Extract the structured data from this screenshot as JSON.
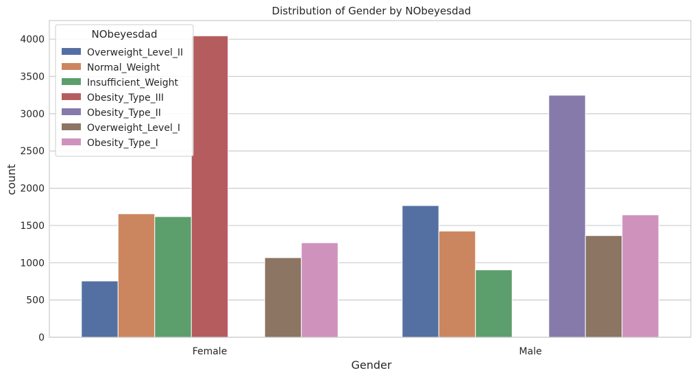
{
  "chart_data": {
    "type": "bar",
    "title": "Distribution of Gender by NObeyesdad",
    "xlabel": "Gender",
    "ylabel": "count",
    "categories": [
      "Female",
      "Male"
    ],
    "ylim": [
      0,
      4250
    ],
    "yticks": [
      0,
      500,
      1000,
      1500,
      2000,
      2500,
      3000,
      3500,
      4000
    ],
    "grid": true,
    "legend": {
      "title": "NObeyesdad",
      "placement": "top-left"
    },
    "series": [
      {
        "name": "Overweight_Level_II",
        "color": "#5470a3",
        "values": [
          755,
          1767
        ]
      },
      {
        "name": "Normal_Weight",
        "color": "#cc865f",
        "values": [
          1657,
          1425
        ]
      },
      {
        "name": "Insufficient_Weight",
        "color": "#5c9e6c",
        "values": [
          1619,
          904
        ]
      },
      {
        "name": "Obesity_Type_III",
        "color": "#b55c5f",
        "values": [
          4045,
          0
        ]
      },
      {
        "name": "Obesity_Type_II",
        "color": "#867aab",
        "values": [
          0,
          3248
        ]
      },
      {
        "name": "Overweight_Level_I",
        "color": "#8c7563",
        "values": [
          1068,
          1364
        ]
      },
      {
        "name": "Obesity_Type_I",
        "color": "#cf92bd",
        "values": [
          1268,
          1642
        ]
      }
    ]
  }
}
